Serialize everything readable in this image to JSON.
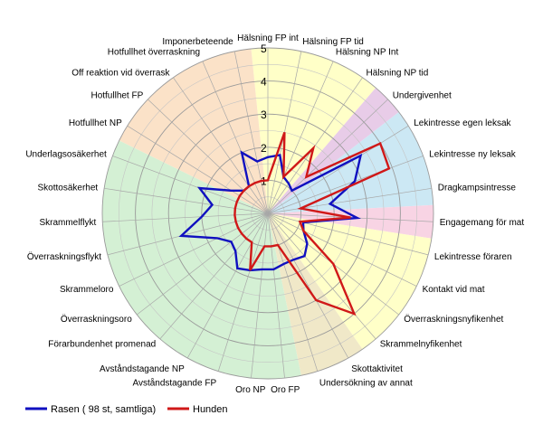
{
  "chart_data": {
    "type": "radar",
    "r_range": [
      0,
      5
    ],
    "ticks": [
      1,
      2,
      3,
      4,
      5
    ],
    "tick_labels": [
      "1",
      "2",
      "3",
      "4",
      "5"
    ],
    "categories": [
      "Hälsning FP int",
      "Hälsning FP tid",
      "Hälsning NP Int",
      "Hälsning NP tid",
      "Undergivenhet",
      "Lekintresse egen leksak",
      "Lekintresse ny leksak",
      "Dragkampsintresse",
      "Engagemang för mat",
      "Lekintresse föraren",
      "Kontakt vid mat",
      "Överraskningsnyfikenhet",
      "Skrammelnyfikenhet",
      "Skottaktivitet",
      "Undersökning av annat",
      "Oro FP",
      "Oro NP",
      "Avståndstagande FP",
      "Avståndstagande NP",
      "Förarbundenhet promenad",
      "Överraskningsoro",
      "Skrammeloro",
      "Överraskningsflykt",
      "Skrammelflykt",
      "Skottosäkerhet",
      "Underlagsosäkerhet",
      "Hotfullhet NP",
      "Hotfullhet FP",
      "Off reaktion vid överrask",
      "Hotfullhet överraskning",
      "Imponerbeteende"
    ],
    "sectors": [
      {
        "from": 0,
        "to": 3,
        "color": "#ffffc8"
      },
      {
        "from": 4,
        "to": 4,
        "color": "#e8cce8"
      },
      {
        "from": 5,
        "to": 7,
        "color": "#cce8f4"
      },
      {
        "from": 8,
        "to": 8,
        "color": "#f8d4e4"
      },
      {
        "from": 9,
        "to": 12,
        "color": "#ffffc8"
      },
      {
        "from": 13,
        "to": 14,
        "color": "#f0e8c8"
      },
      {
        "from": 15,
        "to": 25,
        "color": "#d4f0d4"
      },
      {
        "from": 26,
        "to": 30,
        "color": "#fbe2c8"
      }
    ],
    "series": [
      {
        "name": "Rasen ( 98 st, samtliga)",
        "color": "#1010c0",
        "values": [
          1.7,
          1.8,
          1.2,
          1.1,
          1.0,
          3.3,
          2.8,
          1.9,
          2.7,
          1.1,
          1.2,
          1.5,
          1.7,
          1.6,
          1.6,
          1.7,
          1.7,
          1.8,
          1.9,
          1.5,
          1.4,
          1.7,
          2.7,
          2.0,
          1.7,
          2.2,
          1.3,
          1.0,
          1.0,
          2.0,
          1.6
        ]
      },
      {
        "name": "Hunden",
        "color": "#d01818",
        "values": [
          1.0,
          2.5,
          1.2,
          2.4,
          1.6,
          4.0,
          3.9,
          1.0,
          2.5,
          1.0,
          1.2,
          2.5,
          4.0,
          3.0,
          1.0,
          1.0,
          1.0,
          1.8,
          1.0,
          1.0,
          1.0,
          1.0,
          1.0,
          1.0,
          1.0,
          1.0,
          1.0,
          1.0,
          1.0,
          1.0,
          1.0
        ]
      }
    ],
    "legend_placement": "bottom-left",
    "grid": true
  }
}
